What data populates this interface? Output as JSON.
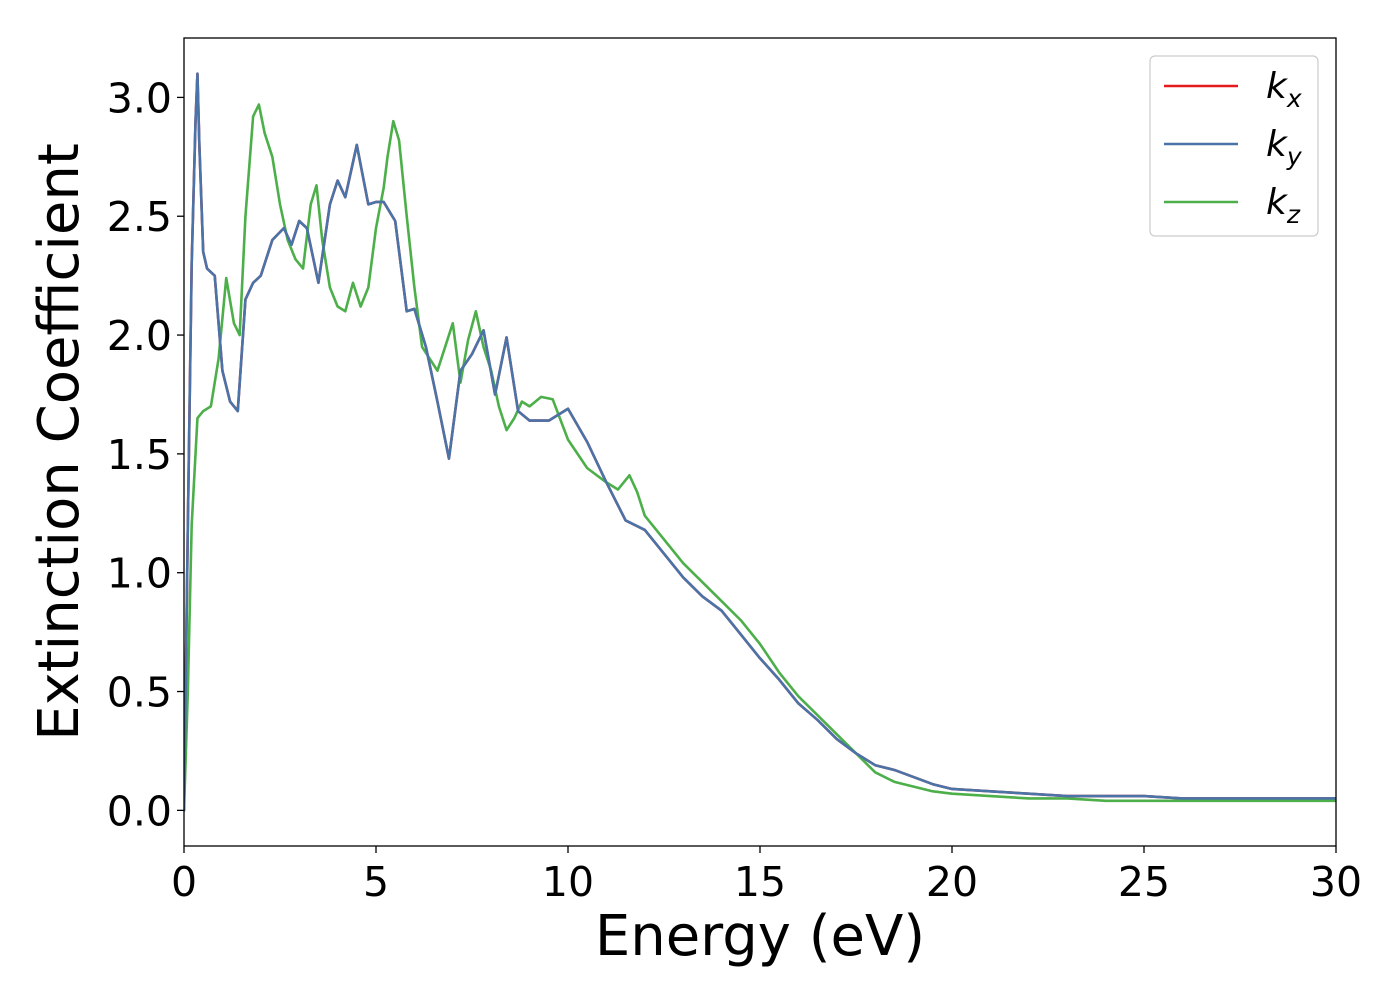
{
  "chart_data": {
    "type": "line",
    "xlabel": "Energy (eV)",
    "ylabel": "Extinction Coefficient",
    "xlim": [
      0,
      30
    ],
    "ylim": [
      -0.15,
      3.25
    ],
    "xticks": [
      "0",
      "5",
      "10",
      "15",
      "20",
      "25",
      "30"
    ],
    "yticks": [
      "0.0",
      "0.5",
      "1.0",
      "1.5",
      "2.0",
      "2.5",
      "3.0"
    ],
    "grid": false,
    "legend_position": "top-right",
    "series": [
      {
        "name": "k_x",
        "label_main": "k",
        "label_sub": "x",
        "color": "#e41a1c",
        "x": [
          0,
          0.1,
          0.2,
          0.3,
          0.35,
          0.4,
          0.5,
          0.6,
          0.8,
          1.0,
          1.2,
          1.4,
          1.6,
          1.8,
          2.0,
          2.3,
          2.6,
          2.8,
          3.0,
          3.2,
          3.5,
          3.8,
          4.0,
          4.2,
          4.5,
          4.8,
          5.0,
          5.2,
          5.5,
          5.8,
          6.0,
          6.3,
          6.6,
          6.9,
          7.2,
          7.5,
          7.8,
          8.1,
          8.4,
          8.7,
          9.0,
          9.5,
          10.0,
          10.5,
          11.0,
          11.5,
          12.0,
          12.5,
          13.0,
          13.5,
          14.0,
          14.5,
          15.0,
          15.5,
          16.0,
          16.5,
          17.0,
          17.5,
          18.0,
          18.5,
          19.0,
          19.5,
          20.0,
          21.0,
          22.0,
          23.0,
          24.0,
          25.0,
          26.0,
          27.0,
          28.0,
          29.0,
          30.0
        ],
        "y": [
          0.0,
          1.2,
          2.3,
          2.9,
          3.1,
          2.8,
          2.35,
          2.28,
          2.25,
          1.85,
          1.72,
          1.68,
          2.15,
          2.22,
          2.25,
          2.4,
          2.45,
          2.38,
          2.48,
          2.45,
          2.22,
          2.55,
          2.65,
          2.58,
          2.8,
          2.55,
          2.56,
          2.56,
          2.48,
          2.1,
          2.11,
          1.95,
          1.72,
          1.48,
          1.85,
          1.92,
          2.02,
          1.75,
          1.99,
          1.68,
          1.64,
          1.64,
          1.69,
          1.55,
          1.38,
          1.22,
          1.18,
          1.08,
          0.98,
          0.9,
          0.84,
          0.74,
          0.64,
          0.55,
          0.45,
          0.38,
          0.3,
          0.24,
          0.19,
          0.17,
          0.14,
          0.11,
          0.09,
          0.08,
          0.07,
          0.06,
          0.06,
          0.06,
          0.05,
          0.05,
          0.05,
          0.05,
          0.05
        ]
      },
      {
        "name": "k_y",
        "label_main": "k",
        "label_sub": "y",
        "color": "#4a73a8",
        "x": [
          0,
          0.1,
          0.2,
          0.3,
          0.35,
          0.4,
          0.5,
          0.6,
          0.8,
          1.0,
          1.2,
          1.4,
          1.6,
          1.8,
          2.0,
          2.3,
          2.6,
          2.8,
          3.0,
          3.2,
          3.5,
          3.8,
          4.0,
          4.2,
          4.5,
          4.8,
          5.0,
          5.2,
          5.5,
          5.8,
          6.0,
          6.3,
          6.6,
          6.9,
          7.2,
          7.5,
          7.8,
          8.1,
          8.4,
          8.7,
          9.0,
          9.5,
          10.0,
          10.5,
          11.0,
          11.5,
          12.0,
          12.5,
          13.0,
          13.5,
          14.0,
          14.5,
          15.0,
          15.5,
          16.0,
          16.5,
          17.0,
          17.5,
          18.0,
          18.5,
          19.0,
          19.5,
          20.0,
          21.0,
          22.0,
          23.0,
          24.0,
          25.0,
          26.0,
          27.0,
          28.0,
          29.0,
          30.0
        ],
        "y": [
          0.0,
          1.2,
          2.3,
          2.9,
          3.1,
          2.8,
          2.35,
          2.28,
          2.25,
          1.85,
          1.72,
          1.68,
          2.15,
          2.22,
          2.25,
          2.4,
          2.45,
          2.38,
          2.48,
          2.45,
          2.22,
          2.55,
          2.65,
          2.58,
          2.8,
          2.55,
          2.56,
          2.56,
          2.48,
          2.1,
          2.11,
          1.95,
          1.72,
          1.48,
          1.85,
          1.92,
          2.02,
          1.75,
          1.99,
          1.68,
          1.64,
          1.64,
          1.69,
          1.55,
          1.38,
          1.22,
          1.18,
          1.08,
          0.98,
          0.9,
          0.84,
          0.74,
          0.64,
          0.55,
          0.45,
          0.38,
          0.3,
          0.24,
          0.19,
          0.17,
          0.14,
          0.11,
          0.09,
          0.08,
          0.07,
          0.06,
          0.06,
          0.06,
          0.05,
          0.05,
          0.05,
          0.05,
          0.05
        ]
      },
      {
        "name": "k_z",
        "label_main": "k",
        "label_sub": "z",
        "color": "#4daf4a",
        "x": [
          0,
          0.1,
          0.2,
          0.35,
          0.5,
          0.7,
          0.9,
          1.1,
          1.3,
          1.45,
          1.6,
          1.8,
          1.95,
          2.1,
          2.3,
          2.5,
          2.7,
          2.9,
          3.1,
          3.3,
          3.45,
          3.6,
          3.8,
          4.0,
          4.2,
          4.4,
          4.6,
          4.8,
          5.0,
          5.2,
          5.3,
          5.45,
          5.6,
          5.8,
          6.0,
          6.2,
          6.4,
          6.6,
          6.8,
          7.0,
          7.2,
          7.4,
          7.6,
          7.8,
          8.0,
          8.2,
          8.4,
          8.6,
          8.8,
          9.0,
          9.3,
          9.6,
          10.0,
          10.5,
          11.0,
          11.3,
          11.6,
          11.8,
          12.0,
          12.5,
          13.0,
          13.5,
          14.0,
          14.5,
          15.0,
          15.5,
          16.0,
          16.5,
          17.0,
          17.5,
          18.0,
          18.5,
          19.0,
          19.5,
          20.0,
          21.0,
          22.0,
          23.0,
          24.0,
          25.0,
          26.0,
          27.0,
          28.0,
          29.0,
          30.0
        ],
        "y": [
          0.0,
          0.5,
          1.2,
          1.65,
          1.68,
          1.7,
          1.9,
          2.24,
          2.05,
          2.0,
          2.5,
          2.92,
          2.97,
          2.85,
          2.75,
          2.55,
          2.4,
          2.32,
          2.28,
          2.55,
          2.63,
          2.4,
          2.2,
          2.12,
          2.1,
          2.22,
          2.12,
          2.2,
          2.45,
          2.62,
          2.75,
          2.9,
          2.82,
          2.5,
          2.2,
          1.95,
          1.9,
          1.85,
          1.95,
          2.05,
          1.8,
          1.98,
          2.1,
          1.95,
          1.85,
          1.7,
          1.6,
          1.65,
          1.72,
          1.7,
          1.74,
          1.73,
          1.56,
          1.44,
          1.38,
          1.35,
          1.41,
          1.34,
          1.24,
          1.14,
          1.04,
          0.96,
          0.88,
          0.8,
          0.7,
          0.58,
          0.48,
          0.4,
          0.32,
          0.24,
          0.16,
          0.12,
          0.1,
          0.08,
          0.07,
          0.06,
          0.05,
          0.05,
          0.04,
          0.04,
          0.04,
          0.04,
          0.04,
          0.04,
          0.04
        ]
      }
    ]
  }
}
